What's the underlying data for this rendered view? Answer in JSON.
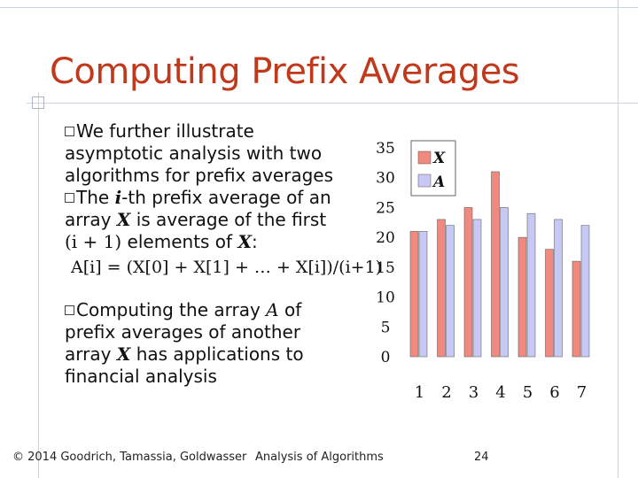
{
  "slide": {
    "title": "Computing Prefix Averages",
    "bullet1": {
      "line1": "We further illustrate",
      "line2": "asymptotic analysis with two",
      "line3": "algorithms for prefix averages"
    },
    "bullet2": {
      "pre": "The ",
      "var_i": "i",
      "post": "-th prefix average of an",
      "line2_pre": "array ",
      "var_X": "X",
      "line2_post": " is average of the first",
      "line3_math": "(i + 1)",
      "line3_mid": " elements of ",
      "line3_var": "X",
      "line3_end": ":"
    },
    "formula": "A[i] = (X[0] + X[1] + … + X[i])/(i+1)",
    "bullet3": {
      "line1_pre": "Computing the array ",
      "var_A": "A",
      "line1_post": " of",
      "line2": "prefix averages of another",
      "line3_pre": "array ",
      "var_X": "X",
      "line3_post": " has applications to",
      "line4": "financial analysis"
    },
    "footer": {
      "copyright": "© 2014 Goodrich, Tamassia, Goldwasser",
      "course": "Analysis of Algorithms",
      "page": "24"
    }
  },
  "chart_data": {
    "type": "bar",
    "categories": [
      "1",
      "2",
      "3",
      "4",
      "5",
      "6",
      "7"
    ],
    "series": [
      {
        "name": "X",
        "color": "#f08a80",
        "values": [
          21,
          23,
          25,
          31,
          20,
          18,
          16
        ]
      },
      {
        "name": "A",
        "color": "#c8c8f4",
        "values": [
          21,
          22,
          23,
          25,
          24,
          23,
          22
        ]
      }
    ],
    "y_ticks": [
      "0",
      "5",
      "10",
      "15",
      "20",
      "25",
      "30",
      "35"
    ],
    "ylim": [
      0,
      35
    ],
    "legend_position": "top-left",
    "grid": false
  }
}
